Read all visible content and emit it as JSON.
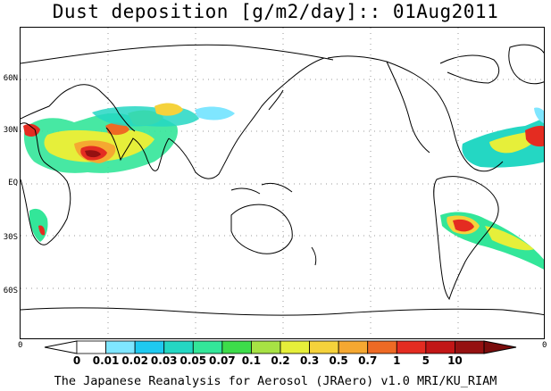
{
  "title": "Dust deposition [g/m2/day]:: 01Aug2011",
  "footer": "The Japanese Reanalysis for Aerosol (JRAero) v1.0 MRI/KU_RIAM",
  "map": {
    "latitude_labels": [
      "60N",
      "30N",
      "EQ",
      "30S",
      "60S"
    ],
    "lon_tick_left": "0",
    "lon_tick_right": "0",
    "gridlines": "dotted"
  },
  "colorbar": {
    "labels": [
      "0",
      "0.01",
      "0.02",
      "0.03",
      "0.05",
      "0.07",
      "0.1",
      "0.2",
      "0.3",
      "0.5",
      "0.7",
      "1",
      "5",
      "10"
    ],
    "colors": [
      "#ffffff",
      "#ffffff",
      "#7fe6ff",
      "#1fc9f0",
      "#24d7c3",
      "#33e699",
      "#3ddc4a",
      "#a7e244",
      "#e6ef3a",
      "#f5d23b",
      "#f5a831",
      "#ee6a24",
      "#e42c21",
      "#c21616",
      "#951111",
      "#7b0d0d"
    ]
  }
}
